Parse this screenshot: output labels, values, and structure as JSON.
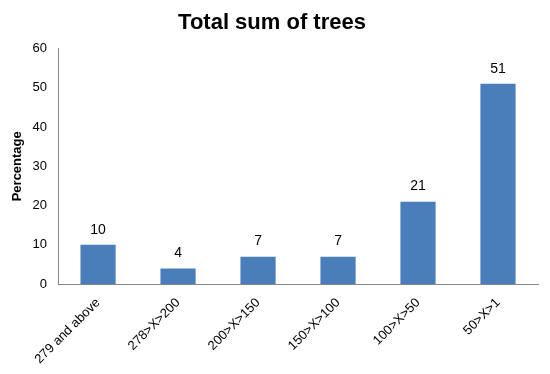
{
  "chart_data": {
    "type": "bar",
    "title": "Total sum of trees",
    "y_label": "Percentage",
    "categories": [
      "279 and above",
      "278>X>200",
      "200>X>150",
      "150>X>100",
      "100>X>50",
      "50>X>1"
    ],
    "values": [
      10,
      4,
      7,
      7,
      21,
      51
    ],
    "color": "#4a7ebb",
    "ylim": [
      0,
      60
    ],
    "yticks": [
      0,
      10,
      20,
      30,
      40,
      50,
      60
    ],
    "grid": false,
    "data_labels": true
  }
}
